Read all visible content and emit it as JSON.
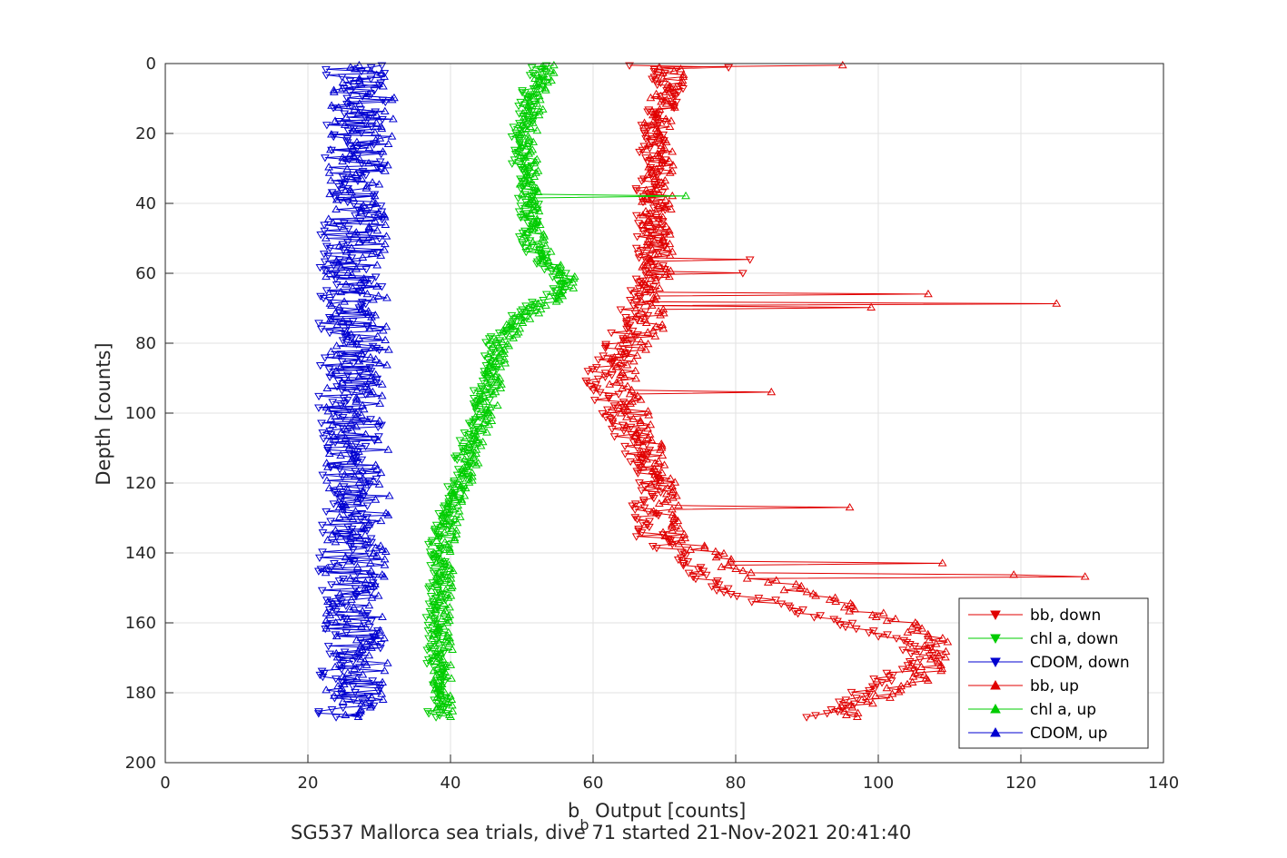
{
  "chart_data": {
    "type": "line",
    "xlabel_main": "b",
    "xlabel_sub": "b",
    "xlabel_rest": " Output [counts]",
    "ylabel": "Depth [counts]",
    "caption": "SG537 Mallorca sea trials, dive 71 started 21-Nov-2021 20:41:40",
    "xlim": [
      0,
      140
    ],
    "ylim": [
      0,
      200
    ],
    "y_reversed": true,
    "grid": true,
    "legend_position": "bottom-right",
    "xticks": [
      "0",
      "20",
      "40",
      "60",
      "80",
      "100",
      "120",
      "140"
    ],
    "yticks": [
      "0",
      "20",
      "40",
      "60",
      "80",
      "100",
      "120",
      "140",
      "160",
      "180",
      "200"
    ],
    "depth_range": [
      0,
      187
    ],
    "series": [
      {
        "name": "bb, down",
        "color": "#E00000",
        "marker": "triangle-down",
        "direction": "down",
        "profile": [
          [
            0,
            67
          ],
          [
            5,
            70
          ],
          [
            10,
            71
          ],
          [
            15,
            69
          ],
          [
            20,
            68
          ],
          [
            30,
            68
          ],
          [
            40,
            68
          ],
          [
            50,
            68
          ],
          [
            60,
            68
          ],
          [
            65,
            67
          ],
          [
            70,
            66
          ],
          [
            75,
            65
          ],
          [
            80,
            64
          ],
          [
            85,
            62
          ],
          [
            90,
            61
          ],
          [
            95,
            62
          ],
          [
            100,
            63
          ],
          [
            110,
            66
          ],
          [
            120,
            68
          ],
          [
            130,
            67
          ],
          [
            135,
            68
          ],
          [
            140,
            72
          ],
          [
            145,
            74
          ],
          [
            150,
            78
          ],
          [
            155,
            86
          ],
          [
            160,
            95
          ],
          [
            165,
            104
          ],
          [
            170,
            107
          ],
          [
            175,
            102
          ],
          [
            180,
            98
          ],
          [
            185,
            93
          ],
          [
            187,
            92
          ]
        ]
      },
      {
        "name": "chl a, down",
        "color": "#00CC00",
        "marker": "triangle-down",
        "direction": "down",
        "profile": [
          [
            0,
            53
          ],
          [
            5,
            52
          ],
          [
            10,
            51
          ],
          [
            20,
            50
          ],
          [
            30,
            50
          ],
          [
            40,
            51
          ],
          [
            50,
            51
          ],
          [
            55,
            52
          ],
          [
            60,
            55
          ],
          [
            63,
            56
          ],
          [
            67,
            54
          ],
          [
            70,
            51
          ],
          [
            75,
            48
          ],
          [
            80,
            46
          ],
          [
            90,
            45
          ],
          [
            100,
            44
          ],
          [
            110,
            42
          ],
          [
            120,
            41
          ],
          [
            130,
            39
          ],
          [
            140,
            38
          ],
          [
            150,
            38
          ],
          [
            160,
            38
          ],
          [
            170,
            38
          ],
          [
            180,
            38
          ],
          [
            187,
            38
          ]
        ]
      },
      {
        "name": "CDOM, down",
        "color": "#0000D0",
        "marker": "triangle-down",
        "direction": "down",
        "profile": [
          [
            0,
            27
          ],
          [
            40,
            26
          ],
          [
            80,
            26
          ],
          [
            120,
            26
          ],
          [
            160,
            26
          ],
          [
            187,
            26
          ]
        ]
      },
      {
        "name": "bb, up",
        "color": "#E00000",
        "marker": "triangle-up",
        "direction": "up",
        "profile": [
          [
            0,
            70
          ],
          [
            5,
            71
          ],
          [
            10,
            70
          ],
          [
            20,
            69
          ],
          [
            30,
            70
          ],
          [
            40,
            69
          ],
          [
            50,
            69
          ],
          [
            60,
            69
          ],
          [
            65,
            69
          ],
          [
            70,
            68
          ],
          [
            75,
            68
          ],
          [
            80,
            66
          ],
          [
            85,
            64
          ],
          [
            90,
            64
          ],
          [
            95,
            65
          ],
          [
            100,
            66
          ],
          [
            110,
            68
          ],
          [
            120,
            70
          ],
          [
            130,
            70
          ],
          [
            135,
            71
          ],
          [
            140,
            76
          ],
          [
            145,
            80
          ],
          [
            150,
            88
          ],
          [
            155,
            95
          ],
          [
            160,
            103
          ],
          [
            165,
            108
          ],
          [
            170,
            109
          ],
          [
            175,
            106
          ],
          [
            180,
            102
          ],
          [
            185,
            96
          ],
          [
            187,
            95
          ]
        ]
      },
      {
        "name": "chl a, up",
        "color": "#00CC00",
        "marker": "triangle-up",
        "direction": "up",
        "profile": [
          [
            0,
            54
          ],
          [
            5,
            53
          ],
          [
            10,
            52
          ],
          [
            20,
            51
          ],
          [
            30,
            51
          ],
          [
            40,
            51
          ],
          [
            50,
            52
          ],
          [
            55,
            53
          ],
          [
            60,
            56
          ],
          [
            63,
            57
          ],
          [
            67,
            55
          ],
          [
            70,
            52
          ],
          [
            75,
            49
          ],
          [
            80,
            47
          ],
          [
            90,
            46
          ],
          [
            100,
            45
          ],
          [
            110,
            43
          ],
          [
            120,
            42
          ],
          [
            130,
            40
          ],
          [
            140,
            39
          ],
          [
            150,
            39
          ],
          [
            160,
            39
          ],
          [
            170,
            39
          ],
          [
            180,
            39
          ],
          [
            187,
            39
          ]
        ]
      },
      {
        "name": "CDOM, up",
        "color": "#0000D0",
        "marker": "triangle-up",
        "direction": "up",
        "profile": [
          [
            0,
            28
          ],
          [
            40,
            27
          ],
          [
            80,
            27
          ],
          [
            120,
            27
          ],
          [
            160,
            27
          ],
          [
            187,
            27
          ]
        ]
      }
    ],
    "spikes": [
      {
        "series": 3,
        "depth": 0.5,
        "x": 95
      },
      {
        "series": 3,
        "depth": 68.5,
        "x": 125
      },
      {
        "series": 3,
        "depth": 66,
        "x": 107
      },
      {
        "series": 3,
        "depth": 70,
        "x": 99
      },
      {
        "series": 3,
        "depth": 94,
        "x": 85
      },
      {
        "series": 3,
        "depth": 127,
        "x": 96
      },
      {
        "series": 3,
        "depth": 147,
        "x": 129
      },
      {
        "series": 3,
        "depth": 146,
        "x": 119
      },
      {
        "series": 3,
        "depth": 143,
        "x": 109
      },
      {
        "series": 4,
        "depth": 38,
        "x": 73
      },
      {
        "series": 0,
        "depth": 1,
        "x": 79
      },
      {
        "series": 0,
        "depth": 56,
        "x": 82
      },
      {
        "series": 0,
        "depth": 60,
        "x": 81
      }
    ]
  }
}
